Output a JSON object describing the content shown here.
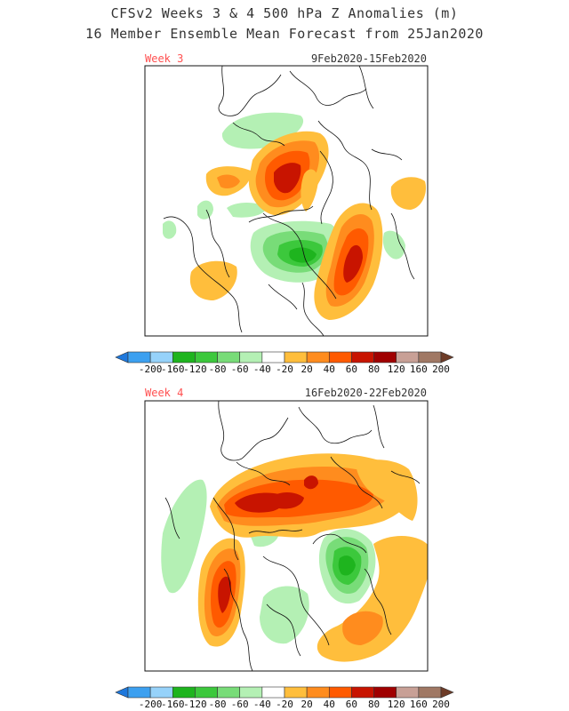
{
  "title_line1": "CFSv2 Weeks 3 & 4 500 hPa Z Anomalies (m)",
  "title_line2": "16 Member Ensemble Mean Forecast from 25Jan2020",
  "chart_data": [
    {
      "type": "heatmap",
      "panel": "Week 3",
      "date_range": "9Feb2020-15Feb2020",
      "label_color": "#ff5050",
      "anomaly_features": [
        {
          "region": "Greenland / Canadian Arctic",
          "sign": "positive",
          "peak_m": 90
        },
        {
          "region": "Beaufort Sea / Alaska",
          "sign": "positive",
          "peak_m": 40
        },
        {
          "region": "Western North Atlantic",
          "sign": "positive",
          "peak_m": 100
        },
        {
          "region": "Eastern North Pacific",
          "sign": "positive",
          "peak_m": 40
        },
        {
          "region": "Western Europe",
          "sign": "positive",
          "peak_m": 30
        },
        {
          "region": "Northern Russia",
          "sign": "negative",
          "peak_m": -40
        },
        {
          "region": "Central Asia",
          "sign": "negative",
          "peak_m": -30
        },
        {
          "region": "Hudson Bay / Eastern Canada",
          "sign": "negative",
          "peak_m": -80
        },
        {
          "region": "Siberia",
          "sign": "negative",
          "peak_m": -30
        }
      ]
    },
    {
      "type": "heatmap",
      "panel": "Week 4",
      "date_range": "16Feb2020-22Feb2020",
      "label_color": "#ff5050",
      "anomaly_features": [
        {
          "region": "Arctic Ocean / Alaska arc",
          "sign": "positive",
          "peak_m": 90
        },
        {
          "region": "Siberia",
          "sign": "positive",
          "peak_m": 40
        },
        {
          "region": "Eastern North Pacific",
          "sign": "positive",
          "peak_m": 80
        },
        {
          "region": "North Atlantic",
          "sign": "positive",
          "peak_m": 50
        },
        {
          "region": "Europe",
          "sign": "negative",
          "peak_m": -80
        },
        {
          "region": "Eastern North America",
          "sign": "negative",
          "peak_m": -30
        },
        {
          "region": "Far East Asia",
          "sign": "negative",
          "peak_m": -30
        }
      ]
    }
  ],
  "colorbar": {
    "labels": [
      "-200",
      "-160",
      "-120",
      "-80",
      "-60",
      "-40",
      "-20",
      "20",
      "40",
      "60",
      "80",
      "120",
      "160",
      "200"
    ],
    "colors": [
      "#1e78dc",
      "#3ca0f0",
      "#96d2fa",
      "#1eb41e",
      "#3cc83c",
      "#78dc78",
      "#b4f0b4",
      "#ffffff",
      "#ffbe3c",
      "#ff8c1e",
      "#ff5a00",
      "#c81400",
      "#a00000",
      "#c8a096",
      "#a07864",
      "#6e3c28"
    ]
  }
}
